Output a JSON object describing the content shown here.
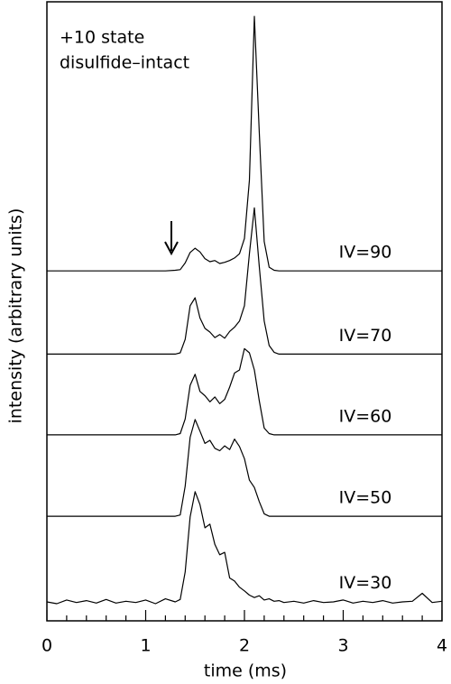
{
  "chart_data": {
    "type": "line",
    "annotations": [
      "+10 state",
      "disulfide–intact"
    ],
    "xlabel": "time (ms)",
    "ylabel": "intensity (arbitrary units)",
    "xlim": [
      0,
      4
    ],
    "ylim": [
      0,
      100
    ],
    "xticks": [
      0,
      1,
      2,
      3,
      4
    ],
    "xminorticks": [
      0.2,
      0.4,
      0.6,
      0.8,
      1.2,
      1.4,
      1.6,
      1.8,
      2.2,
      2.4,
      2.6,
      2.8,
      3.2,
      3.4,
      3.6,
      3.8
    ],
    "x": [
      0,
      0.1,
      0.2,
      0.3,
      0.4,
      0.5,
      0.6,
      0.7,
      0.8,
      0.9,
      1.0,
      1.1,
      1.2,
      1.3,
      1.35,
      1.4,
      1.45,
      1.5,
      1.55,
      1.6,
      1.65,
      1.7,
      1.75,
      1.8,
      1.85,
      1.9,
      1.95,
      2.0,
      2.05,
      2.1,
      2.15,
      2.2,
      2.25,
      2.3,
      2.35,
      2.4,
      2.5,
      2.6,
      2.7,
      2.8,
      2.9,
      3.0,
      3.1,
      3.2,
      3.3,
      3.4,
      3.5,
      3.6,
      3.7,
      3.8,
      3.9,
      4.0
    ],
    "series": [
      {
        "name": "IV=90",
        "color": "#000000",
        "values": [
          57.2,
          57.2,
          57.2,
          57.2,
          57.2,
          57.2,
          57.2,
          57.2,
          57.2,
          57.2,
          57.2,
          57.2,
          57.2,
          57.3,
          57.4,
          58.5,
          60.2,
          60.9,
          60.3,
          59.2,
          58.7,
          58.9,
          58.4,
          58.6,
          58.9,
          59.3,
          60.0,
          62.5,
          72,
          98.8,
          80,
          62,
          57.8,
          57.3,
          57.2,
          57.2,
          57.2,
          57.2,
          57.2,
          57.2,
          57.2,
          57.2,
          57.2,
          57.2,
          57.2,
          57.2,
          57.2,
          57.2,
          57.2,
          57.2,
          57.2,
          57.2
        ]
      },
      {
        "name": "IV=70",
        "color": "#000000",
        "values": [
          43.6,
          43.6,
          43.6,
          43.6,
          43.6,
          43.6,
          43.6,
          43.6,
          43.6,
          43.6,
          43.6,
          43.6,
          43.6,
          43.6,
          43.8,
          46,
          51.5,
          52.8,
          49.5,
          47.8,
          47.2,
          46.3,
          46.8,
          46.2,
          47.3,
          48,
          49,
          51.5,
          60,
          67.5,
          58,
          49,
          45,
          43.9,
          43.6,
          43.6,
          43.6,
          43.6,
          43.6,
          43.6,
          43.6,
          43.6,
          43.6,
          43.6,
          43.6,
          43.6,
          43.6,
          43.6,
          43.6,
          43.6,
          43.6,
          43.6
        ]
      },
      {
        "name": "IV=60",
        "color": "#000000",
        "values": [
          30.4,
          30.4,
          30.4,
          30.4,
          30.4,
          30.4,
          30.4,
          30.4,
          30.4,
          30.4,
          30.4,
          30.4,
          30.4,
          30.4,
          30.6,
          33,
          38.5,
          40.3,
          37.5,
          36.8,
          35.8,
          36.6,
          35.5,
          36.2,
          38.2,
          40.5,
          41,
          44.5,
          43.8,
          41,
          36,
          31.5,
          30.6,
          30.4,
          30.4,
          30.4,
          30.4,
          30.4,
          30.4,
          30.4,
          30.4,
          30.4,
          30.4,
          30.4,
          30.4,
          30.4,
          30.4,
          30.4,
          30.4,
          30.4,
          30.4,
          30.4
        ]
      },
      {
        "name": "IV=50",
        "color": "#000000",
        "values": [
          17.1,
          17.1,
          17.1,
          17.1,
          17.1,
          17.1,
          17.1,
          17.1,
          17.1,
          17.1,
          17.1,
          17.1,
          17.1,
          17.1,
          17.3,
          22,
          30,
          32.9,
          31,
          29,
          29.5,
          28.2,
          27.8,
          28.6,
          28,
          29.7,
          28.5,
          26.5,
          23,
          21.8,
          19.5,
          17.5,
          17.1,
          17.1,
          17.1,
          17.1,
          17.1,
          17.1,
          17.1,
          17.1,
          17.1,
          17.1,
          17.1,
          17.1,
          17.1,
          17.1,
          17.1,
          17.1,
          17.1,
          17.1,
          17.1,
          17.1
        ]
      },
      {
        "name": "IV=30",
        "color": "#000000",
        "values": [
          3.1,
          2.8,
          3.4,
          3.0,
          3.3,
          2.9,
          3.5,
          2.9,
          3.2,
          3.0,
          3.4,
          2.8,
          3.6,
          3.1,
          3.5,
          8,
          17,
          21.1,
          19,
          15.2,
          15.8,
          12.5,
          10.8,
          11.2,
          7,
          6.5,
          5.5,
          4.9,
          4.2,
          3.8,
          4.1,
          3.4,
          3.6,
          3.2,
          3.3,
          3.0,
          3.2,
          2.9,
          3.3,
          3.0,
          3.1,
          3.4,
          2.9,
          3.2,
          3.0,
          3.3,
          2.9,
          3.1,
          3.2,
          4.5,
          3.0,
          3.2
        ]
      }
    ]
  }
}
